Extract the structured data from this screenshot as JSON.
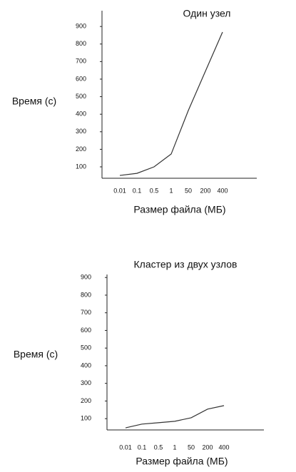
{
  "chart_data": [
    {
      "type": "line",
      "title": "Один узел",
      "y_label": "Время (с)",
      "x_label": "Размер файла (МБ)",
      "categories": [
        "0.01",
        "0.1",
        "0.5",
        "1",
        "50",
        "200",
        "400"
      ],
      "values": [
        51,
        63,
        100,
        173,
        421,
        645,
        868
      ],
      "color": "#333333",
      "ylim": [
        35,
        990
      ],
      "yticks": [
        100,
        200,
        300,
        400,
        500,
        600,
        700,
        800,
        900
      ]
    },
    {
      "type": "line",
      "title": "Кластер из двух узлов",
      "y_label": "Время (с)",
      "x_label": "Размер файла (МБ)",
      "categories": [
        "0.01",
        "0.1",
        "0.5",
        "1",
        "50",
        "200",
        "400"
      ],
      "values": [
        48,
        69,
        77,
        85,
        105,
        154,
        174
      ],
      "color": "#333333",
      "ylim": [
        36,
        917
      ],
      "yticks": [
        100,
        200,
        300,
        400,
        500,
        600,
        700,
        800,
        900
      ]
    }
  ]
}
